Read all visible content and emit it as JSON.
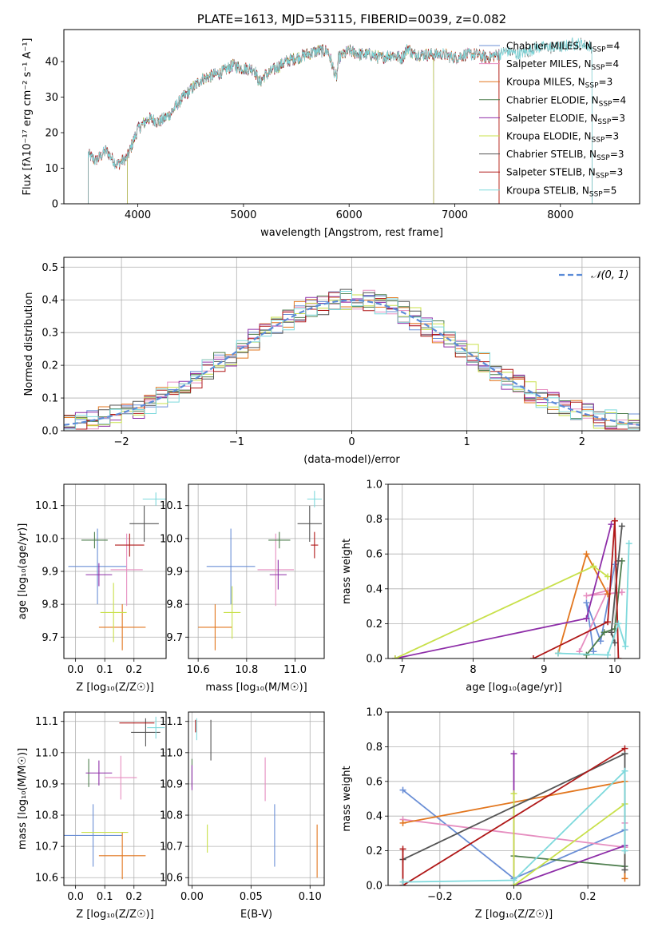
{
  "figure_title": "PLATE=1613, MJD=53115, FIBERID=0039, z=0.082",
  "colors": {
    "Chabrier MILES": "#6b8fd6",
    "Salpeter MILES": "#e68ec0",
    "Kroupa MILES": "#e2761e",
    "Chabrier ELODIE": "#4f7f4f",
    "Salpeter ELODIE": "#8e2ea8",
    "Kroupa ELODIE": "#c8e04a",
    "Chabrier STELIB": "#555555",
    "Salpeter STELIB": "#b01818",
    "Kroupa STELIB": "#7ed9dc",
    "normal_curve": "#5b8bd8",
    "grid": "#b0b0b0"
  },
  "chart_data": [
    {
      "type": "line",
      "title": "PLATE=1613, MJD=53115, FIBERID=0039, z=0.082",
      "xlabel": "wavelength [Angstrom, rest frame]",
      "ylabel": "Flux [fλ10⁻¹⁷ erg cm⁻² s⁻¹ A⁻¹]",
      "xlim": [
        3300,
        8750
      ],
      "ylim": [
        0,
        49
      ],
      "xticks": [
        4000,
        5000,
        6000,
        7000,
        8000
      ],
      "yticks": [
        0,
        10,
        20,
        30,
        40
      ],
      "grid": false,
      "legend_position": "right",
      "spectrum_trend": {
        "x": [
          3530,
          3600,
          3700,
          3800,
          3900,
          4000,
          4100,
          4200,
          4300,
          4400,
          4500,
          4600,
          4700,
          4800,
          4900,
          5000,
          5100,
          5150,
          5200,
          5300,
          5400,
          5500,
          5600,
          5700,
          5800,
          5880,
          5900,
          6000,
          6100,
          6200,
          6300,
          6400,
          6500,
          6560,
          6600,
          6700,
          6800,
          6900,
          7000,
          7100,
          7200,
          7300,
          7400,
          7500,
          7600,
          7700,
          7800,
          7900,
          8000,
          8100,
          8200,
          8300
        ],
        "y": [
          14,
          12,
          15,
          11,
          13,
          21,
          24,
          23,
          25,
          29,
          32,
          35,
          36,
          37,
          39,
          38,
          38,
          34,
          36,
          38,
          40,
          41,
          42,
          43,
          43,
          35,
          41,
          43,
          42,
          42,
          41,
          42,
          41,
          44,
          42,
          42,
          42,
          42,
          41,
          42,
          42,
          41,
          42,
          43,
          42,
          43,
          44,
          44,
          44,
          45,
          45,
          44
        ]
      },
      "series": [
        {
          "name": "Chabrier MILES, N_SSP=4",
          "x_range": [
            3530,
            7420
          ]
        },
        {
          "name": "Salpeter MILES, N_SSP=4",
          "x_range": [
            3530,
            7420
          ]
        },
        {
          "name": "Kroupa MILES, N_SSP=3",
          "x_range": [
            3530,
            7420
          ]
        },
        {
          "name": "Chabrier ELODIE, N_SSP=4",
          "x_range": [
            3900,
            6800
          ]
        },
        {
          "name": "Salpeter ELODIE, N_SSP=3",
          "x_range": [
            3900,
            6800
          ]
        },
        {
          "name": "Kroupa ELODIE, N_SSP=3",
          "x_range": [
            3900,
            6800
          ]
        },
        {
          "name": "Chabrier STELIB, N_SSP=3",
          "x_range": [
            3530,
            8300
          ]
        },
        {
          "name": "Salpeter STELIB, N_SSP=3",
          "x_range": [
            3530,
            7420
          ]
        },
        {
          "name": "Kroupa STELIB, N_SSP=5",
          "x_range": [
            3530,
            8300
          ]
        }
      ]
    },
    {
      "type": "line",
      "xlabel": "(data-model)/error",
      "ylabel": "Normed distribution",
      "xlim": [
        -2.5,
        2.5
      ],
      "ylim": [
        0,
        0.53
      ],
      "xticks": [
        -2,
        -1,
        0,
        1,
        2
      ],
      "yticks": [
        0.0,
        0.1,
        0.2,
        0.3,
        0.4,
        0.5
      ],
      "grid": true,
      "legend_position": "top-right",
      "legend": "𝒩(0, 1)",
      "histogram_bins": {
        "start": -2.5,
        "width": 0.1,
        "count": 50
      },
      "curve": "normal(0,1) density"
    },
    {
      "type": "scatter",
      "xlabel": "Z [log₁₀(Z/Z☉)]",
      "ylabel": "age  [log₁₀(age/yr)]",
      "xlim": [
        -0.04,
        0.31
      ],
      "ylim": [
        9.635,
        10.165
      ],
      "xticks": [
        0.0,
        0.1,
        0.2
      ],
      "yticks": [
        9.7,
        9.8,
        9.9,
        10.0,
        10.1
      ],
      "grid": true,
      "points": [
        {
          "series": "Chabrier MILES",
          "x": 0.075,
          "y": 9.915,
          "xerr": 0.1,
          "yerr": 0.115
        },
        {
          "series": "Salpeter MILES",
          "x": 0.175,
          "y": 9.905,
          "xerr": 0.055,
          "yerr": 0.11
        },
        {
          "series": "Kroupa MILES",
          "x": 0.16,
          "y": 9.73,
          "xerr": 0.08,
          "yerr": 0.07
        },
        {
          "series": "Chabrier ELODIE",
          "x": 0.065,
          "y": 9.995,
          "xerr": 0.045,
          "yerr": 0.025
        },
        {
          "series": "Salpeter ELODIE",
          "x": 0.08,
          "y": 9.89,
          "xerr": 0.045,
          "yerr": 0.035
        },
        {
          "series": "Kroupa ELODIE",
          "x": 0.13,
          "y": 9.775,
          "xerr": 0.045,
          "yerr": 0.09
        },
        {
          "series": "Chabrier STELIB",
          "x": 0.235,
          "y": 10.045,
          "xerr": 0.05,
          "yerr": 0.055
        },
        {
          "series": "Salpeter STELIB",
          "x": 0.185,
          "y": 9.98,
          "xerr": 0.05,
          "yerr": 0.035
        },
        {
          "series": "Kroupa STELIB",
          "x": 0.275,
          "y": 10.12,
          "xerr": 0.045,
          "yerr": 0.02
        }
      ]
    },
    {
      "type": "scatter",
      "xlabel": "mass [log₁₀(M/M☉)]",
      "ylabel": "",
      "xlim": [
        10.56,
        11.12
      ],
      "ylim": [
        9.635,
        10.165
      ],
      "xticks": [
        10.6,
        10.8,
        11.0
      ],
      "yticks": [
        9.7,
        9.8,
        9.9,
        10.0,
        10.1
      ],
      "grid": true,
      "points": [
        {
          "series": "Chabrier MILES",
          "x": 10.735,
          "y": 9.915,
          "xerr": 0.1,
          "yerr": 0.115
        },
        {
          "series": "Salpeter MILES",
          "x": 10.92,
          "y": 9.905,
          "xerr": 0.075,
          "yerr": 0.11
        },
        {
          "series": "Kroupa MILES",
          "x": 10.67,
          "y": 9.73,
          "xerr": 0.07,
          "yerr": 0.07
        },
        {
          "series": "Chabrier ELODIE",
          "x": 10.935,
          "y": 9.995,
          "xerr": 0.045,
          "yerr": 0.025
        },
        {
          "series": "Salpeter ELODIE",
          "x": 10.93,
          "y": 9.89,
          "xerr": 0.035,
          "yerr": 0.045
        },
        {
          "series": "Kroupa ELODIE",
          "x": 10.74,
          "y": 9.775,
          "xerr": 0.035,
          "yerr": 0.08
        },
        {
          "series": "Chabrier STELIB",
          "x": 11.06,
          "y": 10.045,
          "xerr": 0.05,
          "yerr": 0.055
        },
        {
          "series": "Salpeter STELIB",
          "x": 11.08,
          "y": 9.98,
          "xerr": 0.015,
          "yerr": 0.04
        },
        {
          "series": "Kroupa STELIB",
          "x": 11.08,
          "y": 10.12,
          "xerr": 0.03,
          "yerr": 0.025
        }
      ]
    },
    {
      "type": "line",
      "xlabel": "age  [log₁₀(age/yr)]",
      "ylabel": "mass weight",
      "xlim": [
        6.8,
        10.35
      ],
      "ylim": [
        0.0,
        1.0
      ],
      "xticks": [
        7,
        8,
        9,
        10
      ],
      "yticks": [
        0.0,
        0.2,
        0.4,
        0.6,
        0.8,
        1.0
      ],
      "grid": true,
      "series": [
        {
          "name": "Chabrier MILES",
          "x": [
            9.7,
            9.6,
            9.8,
            10.0
          ],
          "y": [
            0.04,
            0.32,
            0.1,
            0.54
          ]
        },
        {
          "name": "Salpeter MILES",
          "x": [
            9.5,
            9.9,
            9.6,
            10.1
          ],
          "y": [
            0.04,
            0.39,
            0.36,
            0.38
          ]
        },
        {
          "name": "Kroupa MILES",
          "x": [
            9.2,
            9.6,
            9.9
          ],
          "y": [
            0.03,
            0.6,
            0.37
          ]
        },
        {
          "name": "Chabrier ELODIE",
          "x": [
            9.6,
            9.85,
            10.0,
            10.1
          ],
          "y": [
            0.02,
            0.15,
            0.17,
            0.56
          ]
        },
        {
          "name": "Salpeter ELODIE",
          "x": [
            6.9,
            9.6,
            9.95
          ],
          "y": [
            0.0,
            0.23,
            0.77
          ]
        },
        {
          "name": "Kroupa ELODIE",
          "x": [
            6.9,
            9.7,
            9.9
          ],
          "y": [
            0.0,
            0.53,
            0.47
          ]
        },
        {
          "name": "Chabrier STELIB",
          "x": [
            10.0,
            9.95,
            10.05,
            10.1
          ],
          "y": [
            0.09,
            0.15,
            0.56,
            0.76
          ]
        },
        {
          "name": "Salpeter STELIB",
          "x": [
            8.85,
            9.9,
            10.0,
            10.05
          ],
          "y": [
            0.0,
            0.21,
            0.79,
            0.0
          ]
        },
        {
          "name": "Kroupa STELIB",
          "x": [
            9.2,
            9.9,
            10.05,
            10.15,
            10.2
          ],
          "y": [
            0.03,
            0.02,
            0.2,
            0.07,
            0.66
          ]
        }
      ]
    },
    {
      "type": "scatter",
      "xlabel": "Z [log₁₀(Z/Z☉)]",
      "ylabel": "mass [log₁₀(M/M☉)]",
      "xlim": [
        -0.04,
        0.31
      ],
      "ylim": [
        10.575,
        11.13
      ],
      "xticks": [
        0.0,
        0.1,
        0.2
      ],
      "yticks": [
        10.6,
        10.7,
        10.8,
        10.9,
        11.0,
        11.1
      ],
      "grid": true,
      "points": [
        {
          "series": "Chabrier MILES",
          "x": 0.06,
          "y": 10.735,
          "xerr": 0.1,
          "yerr": 0.1
        },
        {
          "series": "Salpeter MILES",
          "x": 0.155,
          "y": 10.92,
          "xerr": 0.055,
          "yerr": 0.07
        },
        {
          "series": "Kroupa MILES",
          "x": 0.16,
          "y": 10.67,
          "xerr": 0.08,
          "yerr": 0.075
        },
        {
          "series": "Chabrier ELODIE",
          "x": 0.045,
          "y": 10.935,
          "xerr": 0.0,
          "yerr": 0.045
        },
        {
          "series": "Salpeter ELODIE",
          "x": 0.08,
          "y": 10.935,
          "xerr": 0.045,
          "yerr": 0.04
        },
        {
          "series": "Kroupa ELODIE",
          "x": 0.1,
          "y": 10.745,
          "xerr": 0.08,
          "yerr": 0.0
        },
        {
          "series": "Chabrier STELIB",
          "x": 0.24,
          "y": 11.065,
          "xerr": 0.05,
          "yerr": 0.045
        },
        {
          "series": "Salpeter STELIB",
          "x": 0.21,
          "y": 11.095,
          "xerr": 0.06,
          "yerr": 0.0
        },
        {
          "series": "Kroupa STELIB",
          "x": 0.275,
          "y": 11.08,
          "xerr": 0.03,
          "yerr": 0.035
        }
      ]
    },
    {
      "type": "scatter",
      "xlabel": "E(B-V)",
      "ylabel": "",
      "xlim": [
        -0.003,
        0.112
      ],
      "ylim": [
        10.575,
        11.13
      ],
      "xticks": [
        0.0,
        0.05,
        0.1
      ],
      "yticks": [
        10.6,
        10.7,
        10.8,
        10.9,
        11.0,
        11.1
      ],
      "grid": true,
      "points": [
        {
          "series": "Chabrier MILES",
          "x": 0.07,
          "y": 10.735,
          "xerr": 0.0,
          "yerr": 0.1
        },
        {
          "series": "Salpeter MILES",
          "x": 0.062,
          "y": 10.915,
          "xerr": 0.0,
          "yerr": 0.07
        },
        {
          "series": "Kroupa MILES",
          "x": 0.106,
          "y": 10.685,
          "xerr": 0.0,
          "yerr": 0.085
        },
        {
          "series": "Chabrier ELODIE",
          "x": 0.0,
          "y": 10.935,
          "xerr": 0.0,
          "yerr": 0.045
        },
        {
          "series": "Salpeter ELODIE",
          "x": 0.0,
          "y": 10.92,
          "xerr": 0.0,
          "yerr": 0.04
        },
        {
          "series": "Kroupa ELODIE",
          "x": 0.013,
          "y": 10.725,
          "xerr": 0.0,
          "yerr": 0.045
        },
        {
          "series": "Chabrier STELIB",
          "x": 0.016,
          "y": 11.04,
          "xerr": 0.0,
          "yerr": 0.065
        },
        {
          "series": "Salpeter STELIB",
          "x": 0.003,
          "y": 11.085,
          "xerr": 0.0,
          "yerr": 0.02
        },
        {
          "series": "Kroupa STELIB",
          "x": 0.004,
          "y": 11.075,
          "xerr": 0.0,
          "yerr": 0.035
        }
      ]
    },
    {
      "type": "line",
      "xlabel": "Z [log₁₀(Z/Z☉)]",
      "ylabel": "mass weight",
      "xlim": [
        -0.34,
        0.34
      ],
      "ylim": [
        0.0,
        1.0
      ],
      "xticks": [
        -0.2,
        0.0,
        0.2
      ],
      "yticks": [
        0.0,
        0.2,
        0.4,
        0.6,
        0.8,
        1.0
      ],
      "grid": true,
      "series": [
        {
          "name": "Chabrier MILES",
          "x": [
            -0.3,
            0.0,
            0.3
          ],
          "y": [
            0.55,
            0.04,
            0.32
          ]
        },
        {
          "name": "Salpeter MILES",
          "x": [
            -0.3,
            0.3,
            0.3
          ],
          "y": [
            0.38,
            0.22,
            0.36
          ]
        },
        {
          "name": "Kroupa MILES",
          "x": [
            -0.3,
            0.3,
            0.3
          ],
          "y": [
            0.36,
            0.6,
            0.04
          ]
        },
        {
          "name": "Chabrier ELODIE",
          "x": [
            0.0,
            0.3
          ],
          "y": [
            0.17,
            0.11
          ]
        },
        {
          "name": "Salpeter ELODIE",
          "x": [
            0.0,
            0.0,
            0.3
          ],
          "y": [
            0.76,
            0.0,
            0.23
          ]
        },
        {
          "name": "Kroupa ELODIE",
          "x": [
            0.0,
            0.0,
            0.3
          ],
          "y": [
            0.53,
            0.0,
            0.47
          ]
        },
        {
          "name": "Chabrier STELIB",
          "x": [
            -0.3,
            0.3,
            0.3
          ],
          "y": [
            0.15,
            0.76,
            0.09
          ]
        },
        {
          "name": "Salpeter STELIB",
          "x": [
            -0.3,
            -0.3,
            0.3
          ],
          "y": [
            0.21,
            0.0,
            0.79
          ]
        },
        {
          "name": "Kroupa STELIB",
          "x": [
            -0.3,
            0.0,
            0.3,
            0.3
          ],
          "y": [
            0.02,
            0.03,
            0.66,
            0.2
          ]
        }
      ]
    }
  ]
}
